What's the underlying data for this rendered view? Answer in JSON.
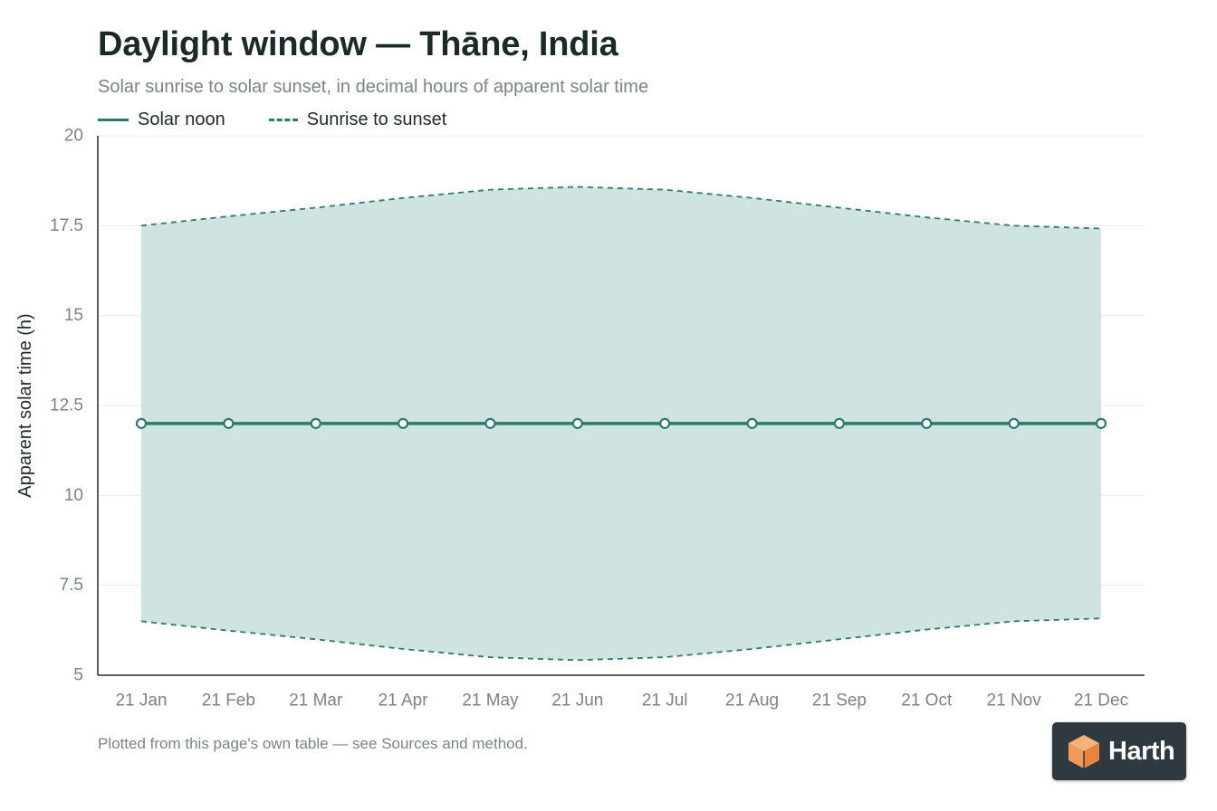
{
  "chart_data": {
    "type": "area",
    "title": "Daylight window — Thāne, India",
    "subtitle": "Solar sunrise to solar sunset, in decimal hours of apparent solar time",
    "ylabel": "Apparent solar time (h)",
    "xlabel": "",
    "ylim": [
      5,
      20
    ],
    "yticks": [
      5,
      7.5,
      10,
      12.5,
      15,
      17.5,
      20
    ],
    "grid": true,
    "legend_position": "top-left",
    "categories": [
      "21 Jan",
      "21 Feb",
      "21 Mar",
      "21 Apr",
      "21 May",
      "21 Jun",
      "21 Jul",
      "21 Aug",
      "21 Sep",
      "21 Oct",
      "21 Nov",
      "21 Dec"
    ],
    "series": [
      {
        "name": "Solar noon",
        "style": "solid-with-markers",
        "values": [
          12,
          12,
          12,
          12,
          12,
          12,
          12,
          12,
          12,
          12,
          12,
          12
        ]
      },
      {
        "name": "Sunrise to sunset",
        "style": "dashed-band",
        "lower": [
          6.5,
          6.24,
          6.0,
          5.73,
          5.5,
          5.42,
          5.5,
          5.73,
          6.0,
          6.27,
          6.5,
          6.58
        ],
        "upper": [
          17.5,
          17.76,
          18.0,
          18.27,
          18.5,
          18.58,
          18.5,
          18.27,
          18.0,
          17.73,
          17.5,
          17.42
        ]
      }
    ],
    "colors": {
      "line": "#2a7a6f",
      "band_fill": "#cfe4e0",
      "grid": "#e9ecec",
      "axis": "#2b2b2b",
      "tick_text": "#7a8582"
    }
  },
  "footnote": "Plotted from this page's own table — see Sources and method.",
  "brand": {
    "name": "Harth",
    "background": "#2e3a3f",
    "icon": "cube-logo-icon"
  }
}
